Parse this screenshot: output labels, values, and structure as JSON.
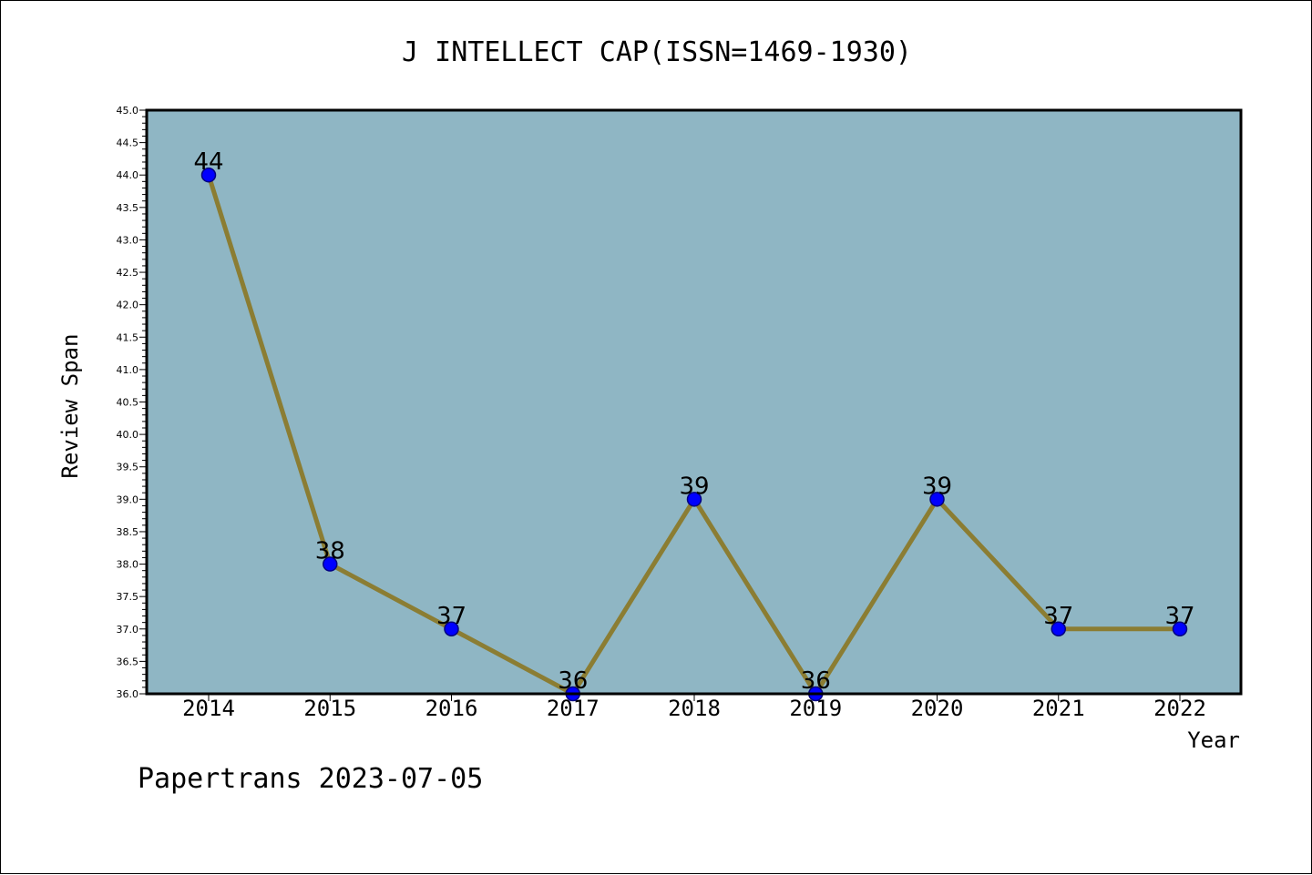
{
  "colors": {
    "plot_background": "#8fb6c4",
    "line": "#8b7d33",
    "marker_fill": "#0000ff",
    "marker_stroke": "#000080",
    "frame": "#000000"
  },
  "footer": {
    "text": "Papertrans 2023-07-05"
  },
  "chart_data": {
    "type": "line",
    "title": "J INTELLECT CAP(ISSN=1469-1930)",
    "xlabel": "Year",
    "ylabel": "Review Span",
    "categories": [
      "2014",
      "2015",
      "2016",
      "2017",
      "2018",
      "2019",
      "2020",
      "2021",
      "2022"
    ],
    "series": [
      {
        "values": [
          44,
          38,
          37,
          36,
          39,
          36,
          39,
          37,
          37
        ]
      }
    ],
    "ylim": [
      36.0,
      45.0
    ],
    "y_ticks": [
      "36.0",
      "36.5",
      "37.0",
      "37.5",
      "38.0",
      "38.5",
      "39.0",
      "39.5",
      "40.0",
      "40.5",
      "41.0",
      "41.5",
      "42.0",
      "42.5",
      "43.0",
      "43.5",
      "44.0",
      "44.5",
      "45.0"
    ],
    "data_labels": true,
    "grid": false,
    "legend": "none"
  }
}
